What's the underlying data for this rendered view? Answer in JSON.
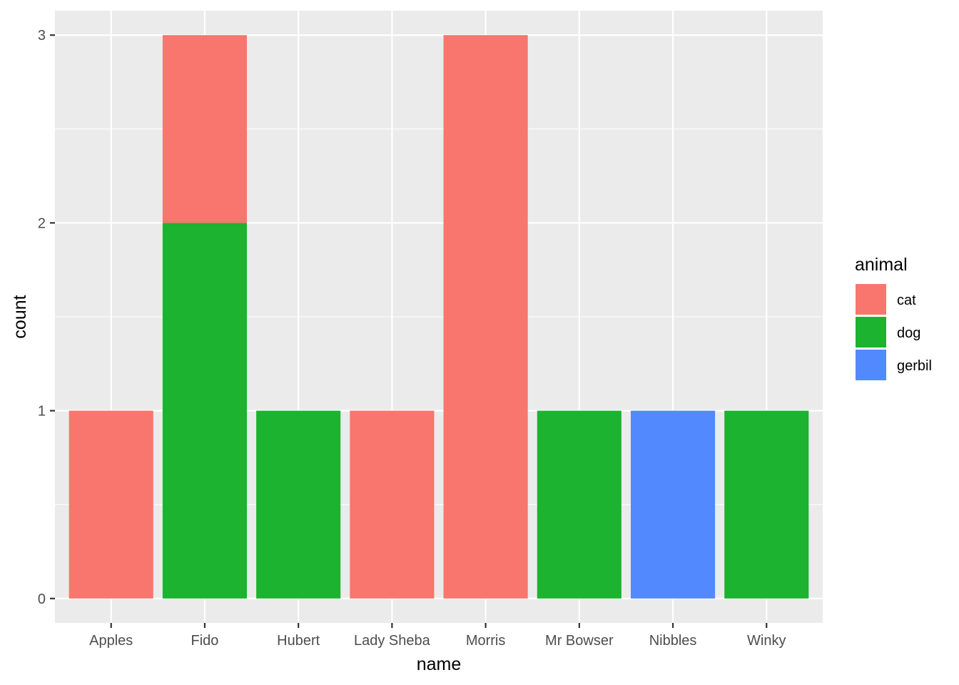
{
  "chart_data": {
    "type": "bar",
    "stacked": true,
    "xlabel": "name",
    "ylabel": "count",
    "ylim": [
      -0.13,
      3.13
    ],
    "y_ticks": [
      0,
      1,
      2,
      3
    ],
    "grid": true,
    "legend_title": "animal",
    "legend_position": "right",
    "categories": [
      "Apples",
      "Fido",
      "Hubert",
      "Lady Sheba",
      "Morris",
      "Mr Bowser",
      "Nibbles",
      "Winky"
    ],
    "series": [
      {
        "name": "cat",
        "color": "#F8766D",
        "values": [
          1,
          1,
          0,
          1,
          3,
          0,
          0,
          0
        ]
      },
      {
        "name": "dog",
        "color": "#1BB32F",
        "values": [
          0,
          2,
          1,
          0,
          0,
          1,
          0,
          1
        ]
      },
      {
        "name": "gerbil",
        "color": "#5289FF",
        "values": [
          0,
          0,
          0,
          0,
          0,
          0,
          1,
          0
        ]
      }
    ],
    "stack_order_bottom_to_top": [
      "gerbil",
      "dog",
      "cat"
    ]
  }
}
